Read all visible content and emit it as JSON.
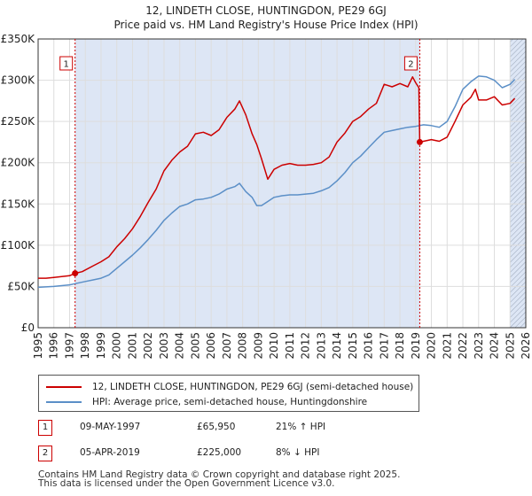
{
  "colors": {
    "price_line": "#cc0000",
    "hpi_line": "#5b8fc7",
    "shade": "#dde6f5",
    "grid": "#dddddd"
  },
  "chart_data": {
    "type": "line",
    "title_line1": "12, LINDETH CLOSE, HUNTINGDON, PE29 6GJ",
    "title_line2": "Price paid vs. HM Land Registry's House Price Index (HPI)",
    "xlim": [
      1995,
      2026
    ],
    "ylim": [
      0,
      350000
    ],
    "y_ticks": [
      {
        "value": 0,
        "label": "£0"
      },
      {
        "value": 50000,
        "label": "£50K"
      },
      {
        "value": 100000,
        "label": "£100K"
      },
      {
        "value": 150000,
        "label": "£150K"
      },
      {
        "value": 200000,
        "label": "£200K"
      },
      {
        "value": 250000,
        "label": "£250K"
      },
      {
        "value": 300000,
        "label": "£300K"
      },
      {
        "value": 350000,
        "label": "£350K"
      }
    ],
    "x_ticks": [
      {
        "value": 1995,
        "label": "1995"
      },
      {
        "value": 1996,
        "label": "1996"
      },
      {
        "value": 1997,
        "label": "1997"
      },
      {
        "value": 1998,
        "label": "1998"
      },
      {
        "value": 1999,
        "label": "1999"
      },
      {
        "value": 2000,
        "label": "2000"
      },
      {
        "value": 2001,
        "label": "2001"
      },
      {
        "value": 2002,
        "label": "2002"
      },
      {
        "value": 2003,
        "label": "2003"
      },
      {
        "value": 2004,
        "label": "2004"
      },
      {
        "value": 2005,
        "label": "2005"
      },
      {
        "value": 2006,
        "label": "2006"
      },
      {
        "value": 2007,
        "label": "2007"
      },
      {
        "value": 2008,
        "label": "2008"
      },
      {
        "value": 2009,
        "label": "2009"
      },
      {
        "value": 2010,
        "label": "2010"
      },
      {
        "value": 2011,
        "label": "2011"
      },
      {
        "value": 2012,
        "label": "2012"
      },
      {
        "value": 2013,
        "label": "2013"
      },
      {
        "value": 2014,
        "label": "2014"
      },
      {
        "value": 2015,
        "label": "2015"
      },
      {
        "value": 2016,
        "label": "2016"
      },
      {
        "value": 2017,
        "label": "2017"
      },
      {
        "value": 2018,
        "label": "2018"
      },
      {
        "value": 2019,
        "label": "2019"
      },
      {
        "value": 2020,
        "label": "2020"
      },
      {
        "value": 2021,
        "label": "2021"
      },
      {
        "value": 2022,
        "label": "2022"
      },
      {
        "value": 2023,
        "label": "2023"
      },
      {
        "value": 2024,
        "label": "2024"
      },
      {
        "value": 2025,
        "label": "2025"
      },
      {
        "value": 2026,
        "label": "2026"
      }
    ],
    "shaded_ranges": [
      [
        1997.35,
        2019.26
      ],
      [
        2025.0,
        2026.0
      ]
    ],
    "hatched_range": [
      2025.0,
      2026.0
    ],
    "series": [
      {
        "name": "12, LINDETH CLOSE, HUNTINGDON, PE29 6GJ (semi-detached house)",
        "x": [
          1995.0,
          1995.5,
          1996.0,
          1996.5,
          1997.0,
          1997.35,
          1997.8,
          1998.5,
          1999.0,
          1999.5,
          2000.0,
          2000.5,
          2001.0,
          2001.5,
          2002.0,
          2002.5,
          2003.0,
          2003.5,
          2004.0,
          2004.5,
          2005.0,
          2005.5,
          2006.0,
          2006.5,
          2007.0,
          2007.5,
          2007.8,
          2008.2,
          2008.6,
          2008.9,
          2009.2,
          2009.6,
          2010.0,
          2010.5,
          2011.0,
          2011.5,
          2012.0,
          2012.5,
          2013.0,
          2013.5,
          2014.0,
          2014.5,
          2015.0,
          2015.5,
          2016.0,
          2016.5,
          2017.0,
          2017.5,
          2018.0,
          2018.5,
          2018.8,
          2019.0,
          2019.2,
          2019.26,
          2019.5,
          2020.0,
          2020.5,
          2021.0,
          2021.5,
          2022.0,
          2022.5,
          2022.8,
          2023.0,
          2023.5,
          2024.0,
          2024.5,
          2025.0,
          2025.3
        ],
        "values": [
          60000,
          60000,
          61000,
          62000,
          63000,
          65950,
          68000,
          75000,
          80000,
          86000,
          98000,
          108000,
          120000,
          135000,
          152000,
          168000,
          190000,
          203000,
          213000,
          220000,
          235000,
          237000,
          233000,
          240000,
          255000,
          265000,
          275000,
          258000,
          235000,
          222000,
          205000,
          180000,
          192000,
          197000,
          199000,
          197000,
          197000,
          198000,
          200000,
          207000,
          225000,
          236000,
          250000,
          256000,
          265000,
          272000,
          295000,
          292000,
          296000,
          292000,
          304000,
          297000,
          291000,
          225000,
          226000,
          228000,
          226000,
          231000,
          250000,
          270000,
          279000,
          289000,
          276000,
          276000,
          280000,
          270000,
          272000,
          278000
        ]
      },
      {
        "name": "HPI: Average price, semi-detached house, Huntingdonshire",
        "x": [
          1995.0,
          1995.5,
          1996.0,
          1996.5,
          1997.0,
          1997.5,
          1998.0,
          1998.5,
          1999.0,
          1999.5,
          2000.0,
          2000.5,
          2001.0,
          2001.5,
          2002.0,
          2002.5,
          2003.0,
          2003.5,
          2004.0,
          2004.5,
          2005.0,
          2005.5,
          2006.0,
          2006.5,
          2007.0,
          2007.5,
          2007.8,
          2008.2,
          2008.6,
          2008.9,
          2009.2,
          2009.6,
          2010.0,
          2010.5,
          2011.0,
          2011.5,
          2012.0,
          2012.5,
          2013.0,
          2013.5,
          2014.0,
          2014.5,
          2015.0,
          2015.5,
          2016.0,
          2016.5,
          2017.0,
          2017.5,
          2018.0,
          2018.5,
          2019.0,
          2019.5,
          2020.0,
          2020.5,
          2021.0,
          2021.5,
          2022.0,
          2022.5,
          2023.0,
          2023.5,
          2024.0,
          2024.5,
          2025.0,
          2025.3
        ],
        "values": [
          49000,
          49500,
          50000,
          51000,
          52000,
          54000,
          56000,
          58000,
          60000,
          64000,
          72000,
          80000,
          88000,
          97000,
          107000,
          118000,
          130000,
          139000,
          147000,
          150000,
          155000,
          156000,
          158000,
          162000,
          168000,
          171000,
          175000,
          165000,
          158000,
          148000,
          148000,
          153000,
          158000,
          160000,
          161000,
          161000,
          162000,
          163000,
          166000,
          170000,
          178000,
          188000,
          200000,
          208000,
          218000,
          228000,
          237000,
          239000,
          241000,
          243000,
          244000,
          246000,
          245000,
          243000,
          250000,
          268000,
          289000,
          298000,
          305000,
          304000,
          300000,
          291000,
          295000,
          301000
        ]
      }
    ],
    "sales": [
      {
        "label": "1",
        "date": "09-MAY-1997",
        "x": 1997.35,
        "price": 65950,
        "price_label": "£65,950",
        "hpi_delta": "21% ↑ HPI"
      },
      {
        "label": "2",
        "date": "05-APR-2019",
        "x": 2019.26,
        "price": 225000,
        "price_label": "£225,000",
        "hpi_delta": "8% ↓ HPI"
      }
    ]
  },
  "legend": {
    "price_label": "12, LINDETH CLOSE, HUNTINGDON, PE29 6GJ (semi-detached house)",
    "hpi_label": "HPI: Average price, semi-detached house, Huntingdonshire"
  },
  "footer": {
    "line1": "Contains HM Land Registry data © Crown copyright and database right 2025.",
    "line2": "This data is licensed under the Open Government Licence v3.0."
  }
}
